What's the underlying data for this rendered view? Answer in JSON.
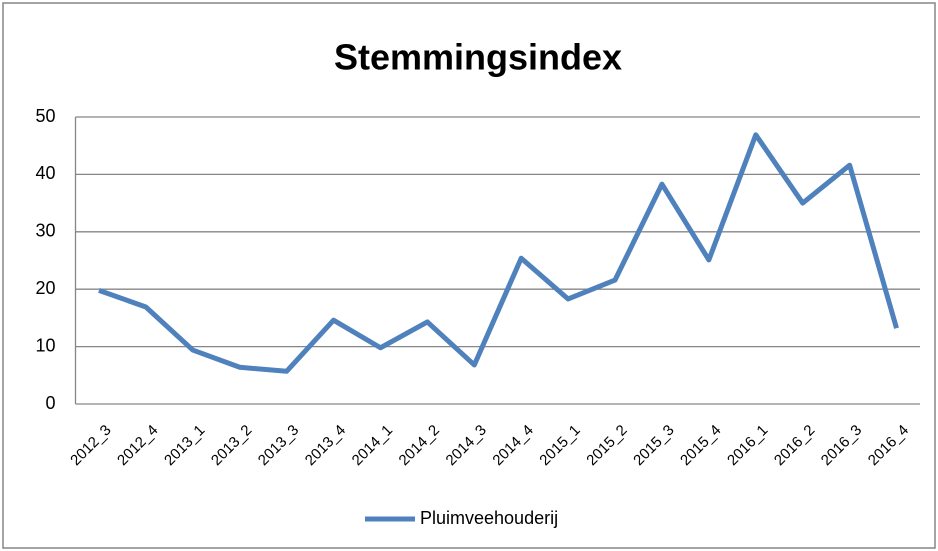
{
  "chart_data": {
    "type": "line",
    "title": "Stemmingsindex",
    "categories": [
      "2012_3",
      "2012_4",
      "2013_1",
      "2013_2",
      "2013_3",
      "2013_4",
      "2014_1",
      "2014_2",
      "2014_3",
      "2014_4",
      "2015_1",
      "2015_2",
      "2015_3",
      "2015_4",
      "2016_1",
      "2016_2",
      "2016_3",
      "2016_4"
    ],
    "series": [
      {
        "name": "Pluimveehouderij",
        "color": "#4f81bd",
        "values": [
          19.8,
          16.9,
          9.4,
          6.4,
          5.7,
          14.6,
          9.8,
          14.3,
          6.8,
          25.4,
          18.3,
          21.6,
          38.3,
          25.1,
          46.9,
          35.0,
          41.6,
          13.2
        ]
      }
    ],
    "ylim": [
      0,
      50
    ],
    "yticks": [
      0,
      10,
      20,
      30,
      40,
      50
    ],
    "grid": true,
    "legend": "bottom"
  }
}
